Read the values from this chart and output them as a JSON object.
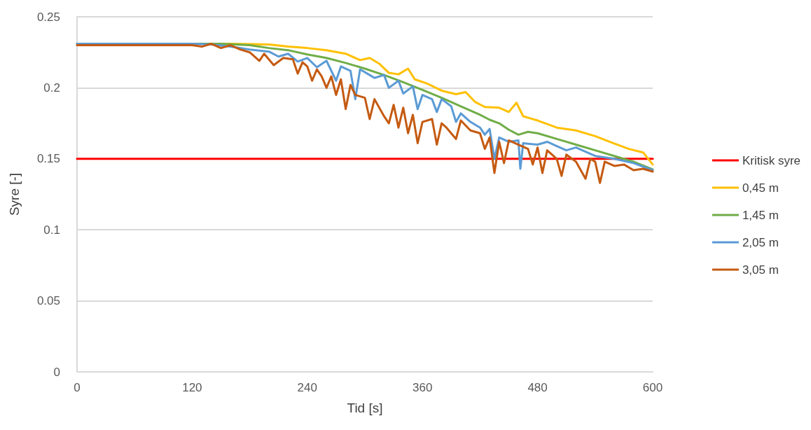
{
  "chart_data": {
    "type": "line",
    "xlabel": "Tid [s]",
    "ylabel": "Syre [-]",
    "xlim": [
      0,
      600
    ],
    "xticks": [
      0,
      120,
      240,
      360,
      480,
      600
    ],
    "ylim": [
      0,
      0.25
    ],
    "yticks": [
      0,
      0.05,
      0.1,
      0.15,
      0.2,
      0.25
    ],
    "grid": "y",
    "legend": "right",
    "marker": "none",
    "line_style": "solid",
    "series": [
      {
        "name": "Kritisk syre",
        "color": "#ff0000",
        "x": [
          0,
          600
        ],
        "values": [
          0.15,
          0.15
        ]
      },
      {
        "name": "0,45 m",
        "color": "#ffc000",
        "x": [
          0,
          100,
          160,
          200,
          220,
          240,
          260,
          280,
          295,
          305,
          315,
          325,
          335,
          345,
          352,
          365,
          380,
          395,
          405,
          415,
          425,
          440,
          450,
          458,
          465,
          480,
          500,
          520,
          540,
          555,
          575,
          590,
          600
        ],
        "values": [
          0.231,
          0.231,
          0.231,
          0.2305,
          0.229,
          0.228,
          0.2265,
          0.224,
          0.2195,
          0.221,
          0.217,
          0.2105,
          0.2095,
          0.2135,
          0.206,
          0.203,
          0.198,
          0.1955,
          0.197,
          0.19,
          0.1865,
          0.186,
          0.183,
          0.1895,
          0.18,
          0.177,
          0.172,
          0.17,
          0.166,
          0.162,
          0.157,
          0.1545,
          0.146
        ]
      },
      {
        "name": "1,45 m",
        "color": "#70ad47",
        "x": [
          0,
          150,
          180,
          200,
          220,
          240,
          260,
          280,
          300,
          320,
          340,
          360,
          380,
          400,
          420,
          430,
          440,
          450,
          460,
          470,
          480,
          500,
          520,
          540,
          560,
          580,
          600
        ],
        "values": [
          0.231,
          0.231,
          0.23,
          0.228,
          0.2265,
          0.2235,
          0.221,
          0.2175,
          0.2135,
          0.209,
          0.204,
          0.1985,
          0.193,
          0.187,
          0.181,
          0.1775,
          0.175,
          0.1705,
          0.167,
          0.169,
          0.168,
          0.164,
          0.16,
          0.156,
          0.152,
          0.148,
          0.1425
        ]
      },
      {
        "name": "2,05 m",
        "color": "#5b9bd5",
        "x": [
          0,
          120,
          140,
          160,
          180,
          200,
          210,
          220,
          230,
          240,
          250,
          260,
          270,
          275,
          285,
          290,
          295,
          305,
          310,
          320,
          325,
          335,
          340,
          350,
          355,
          360,
          370,
          375,
          380,
          390,
          395,
          400,
          410,
          420,
          425,
          430,
          435,
          440,
          450,
          460,
          462,
          465,
          480,
          490,
          500,
          510,
          520,
          540,
          560,
          580,
          600
        ],
        "values": [
          0.231,
          0.231,
          0.2305,
          0.229,
          0.227,
          0.2255,
          0.222,
          0.224,
          0.2185,
          0.221,
          0.2145,
          0.219,
          0.205,
          0.215,
          0.212,
          0.192,
          0.213,
          0.209,
          0.207,
          0.209,
          0.2,
          0.205,
          0.196,
          0.201,
          0.185,
          0.195,
          0.192,
          0.183,
          0.192,
          0.187,
          0.176,
          0.182,
          0.176,
          0.172,
          0.167,
          0.171,
          0.15,
          0.165,
          0.162,
          0.163,
          0.143,
          0.161,
          0.16,
          0.162,
          0.159,
          0.156,
          0.158,
          0.152,
          0.15,
          0.147,
          0.142
        ]
      },
      {
        "name": "3,05 m",
        "color": "#c55a11",
        "x": [
          0,
          120,
          130,
          140,
          150,
          160,
          170,
          180,
          190,
          195,
          205,
          215,
          225,
          230,
          235,
          240,
          245,
          250,
          255,
          260,
          265,
          270,
          275,
          280,
          285,
          290,
          300,
          305,
          310,
          320,
          325,
          330,
          335,
          340,
          345,
          350,
          355,
          360,
          370,
          375,
          380,
          385,
          395,
          400,
          410,
          420,
          425,
          430,
          435,
          440,
          445,
          450,
          460,
          470,
          475,
          480,
          485,
          490,
          500,
          505,
          510,
          520,
          530,
          535,
          540,
          545,
          550,
          560,
          570,
          580,
          590,
          600
        ],
        "values": [
          0.23,
          0.23,
          0.229,
          0.231,
          0.228,
          0.23,
          0.227,
          0.225,
          0.219,
          0.224,
          0.216,
          0.221,
          0.22,
          0.21,
          0.218,
          0.215,
          0.205,
          0.213,
          0.208,
          0.2,
          0.208,
          0.195,
          0.206,
          0.185,
          0.202,
          0.195,
          0.193,
          0.178,
          0.192,
          0.18,
          0.175,
          0.188,
          0.172,
          0.186,
          0.168,
          0.181,
          0.161,
          0.176,
          0.178,
          0.16,
          0.175,
          0.172,
          0.164,
          0.177,
          0.17,
          0.168,
          0.157,
          0.165,
          0.14,
          0.162,
          0.147,
          0.163,
          0.16,
          0.157,
          0.146,
          0.158,
          0.14,
          0.156,
          0.15,
          0.138,
          0.153,
          0.148,
          0.136,
          0.15,
          0.148,
          0.133,
          0.148,
          0.145,
          0.146,
          0.142,
          0.143,
          0.141
        ]
      }
    ]
  }
}
